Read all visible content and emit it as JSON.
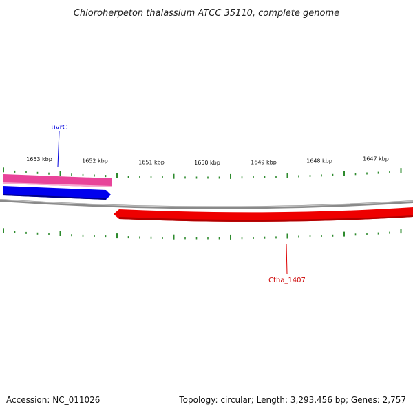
{
  "title": "Chloroherpeton thalassium ATCC 35110, complete genome",
  "footer": {
    "accession": "Accession: NC_011026",
    "summary": "Topology: circular; Length: 3,293,456 bp; Genes: 2,757"
  },
  "ticks": [
    "1653 kbp",
    "1652 kbp",
    "1651 kbp",
    "1650 kbp",
    "1649 kbp",
    "1648 kbp",
    "1647 kbp"
  ],
  "genes": {
    "pink_feature": {
      "color": "#e8449a"
    },
    "uvrC": {
      "label": "uvrC",
      "color": "#0000dd"
    },
    "Ctha_1407": {
      "label": "Ctha_1407",
      "color": "#ee0000"
    }
  },
  "colors": {
    "backbone": "#8a8a8a",
    "tick": "#2e8b2e"
  }
}
